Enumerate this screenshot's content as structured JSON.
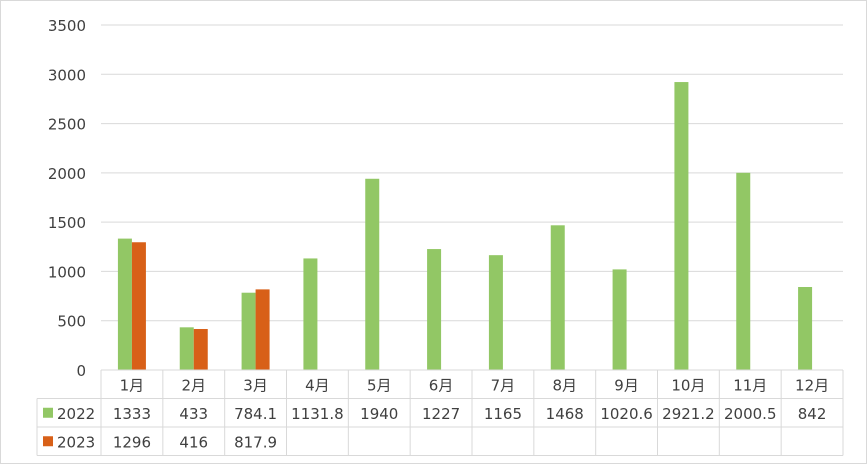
{
  "chart_data": {
    "type": "bar",
    "categories": [
      "1月",
      "2月",
      "3月",
      "4月",
      "5月",
      "6月",
      "7月",
      "8月",
      "9月",
      "10月",
      "11月",
      "12月"
    ],
    "series": [
      {
        "name": "2022",
        "color": "#92c765",
        "values": [
          1333,
          433,
          784.1,
          1131.8,
          1940,
          1227,
          1165,
          1468,
          1020.6,
          2921.2,
          2000.5,
          842
        ],
        "labels": [
          "1333",
          "433",
          "784.1",
          "1131.8",
          "1940",
          "1227",
          "1165",
          "1468",
          "1020.6",
          "2921.2",
          "2000.5",
          "842"
        ]
      },
      {
        "name": "2023",
        "color": "#d86018",
        "values": [
          1296,
          416,
          817.9,
          null,
          null,
          null,
          null,
          null,
          null,
          null,
          null,
          null
        ],
        "labels": [
          "1296",
          "416",
          "817.9",
          "",
          "",
          "",
          "",
          "",
          "",
          "",
          "",
          ""
        ]
      }
    ],
    "yticks": [
      "0",
      "500",
      "1000",
      "1500",
      "2000",
      "2500",
      "3000",
      "3500"
    ],
    "ylim": [
      0,
      3500
    ],
    "grid": true,
    "legend": "data-table",
    "gridline_color": "#d9d9d9"
  }
}
